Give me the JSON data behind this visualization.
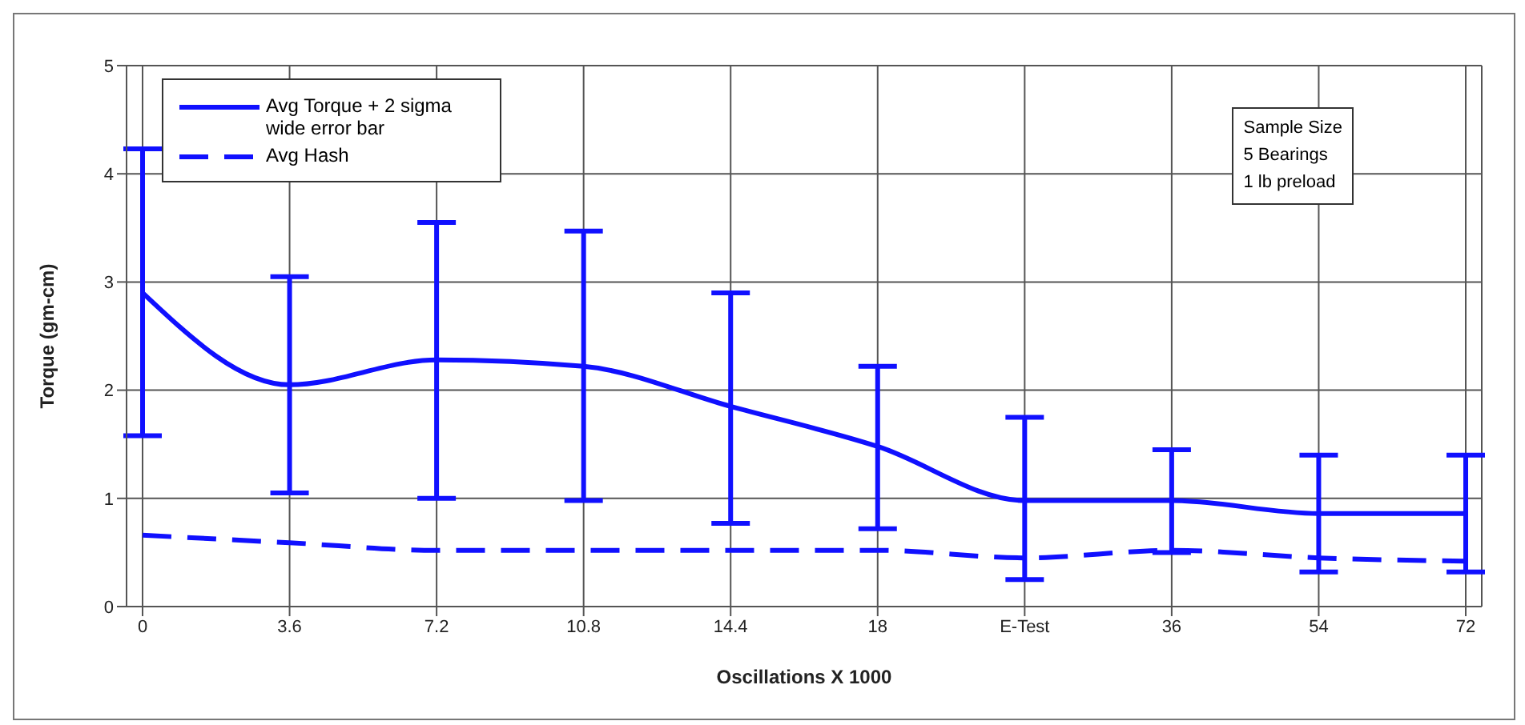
{
  "chart_data": {
    "type": "line",
    "xlabel": "Oscillations X 1000",
    "ylabel": "Torque (gm-cm)",
    "categories": [
      "0",
      "3.6",
      "7.2",
      "10.8",
      "14.4",
      "18",
      "E-Test",
      "36",
      "54",
      "72"
    ],
    "series": [
      {
        "name": "Avg Torque + 2 sigma wide error bar",
        "color": "#1010ff",
        "line_style": "solid",
        "values": [
          2.9,
          2.05,
          2.28,
          2.22,
          1.85,
          1.48,
          0.98,
          0.98,
          0.86,
          0.86
        ],
        "errors": [
          [
            1.58,
            4.23
          ],
          [
            1.05,
            3.05
          ],
          [
            1.0,
            3.55
          ],
          [
            0.98,
            3.47
          ],
          [
            0.77,
            2.9
          ],
          [
            0.72,
            2.22
          ],
          [
            0.25,
            1.75
          ],
          [
            0.5,
            1.45
          ],
          [
            0.32,
            1.4
          ],
          [
            0.32,
            1.4
          ]
        ]
      },
      {
        "name": "Avg Hash",
        "color": "#1010ff",
        "line_style": "dashed",
        "values": [
          0.66,
          0.59,
          0.52,
          0.52,
          0.52,
          0.52,
          0.45,
          0.52,
          0.45,
          0.42
        ]
      }
    ],
    "ylim": [
      0,
      5
    ],
    "yticks": [
      0,
      1,
      2,
      3,
      4,
      5
    ],
    "grid": true,
    "legend": "top left",
    "marker": "none",
    "annotations": [
      "Sample Size",
      "5 Bearings",
      "1 lb preload"
    ]
  }
}
